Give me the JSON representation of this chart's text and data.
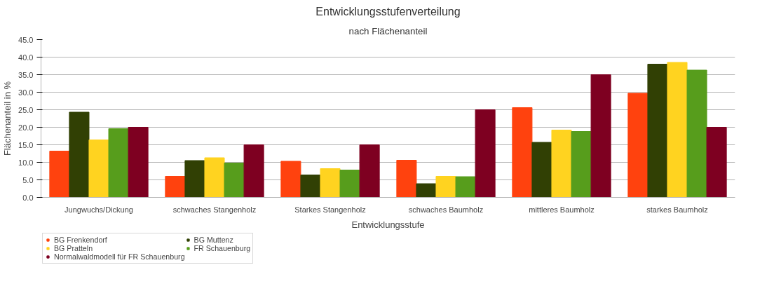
{
  "chart_data": {
    "type": "bar",
    "title": "Entwicklungsstufenverteilung",
    "subtitle": "nach Flächenanteil",
    "xlabel": "Entwicklungsstufe",
    "ylabel": "Flächenanteil in %",
    "categories": [
      "Jungwuchs/Dickung",
      "schwaches Stangenholz",
      "Starkes Stangenholz",
      "schwaches Baumholz",
      "mittleres Baumholz",
      "starkes Baumholz"
    ],
    "series": [
      {
        "name": "BG Frenkendorf",
        "color": "#ff420e",
        "values": [
          13.2,
          6.0,
          10.3,
          10.6,
          25.6,
          29.7
        ]
      },
      {
        "name": "BG Muttenz",
        "color": "#314004",
        "values": [
          24.3,
          10.5,
          6.4,
          3.9,
          15.7,
          38.0
        ]
      },
      {
        "name": "BG Pratteln",
        "color": "#ffd320",
        "values": [
          16.4,
          11.3,
          8.2,
          6.0,
          19.2,
          38.5
        ]
      },
      {
        "name": "FR Schauenburg",
        "color": "#579d1c",
        "values": [
          19.6,
          9.8,
          7.8,
          5.9,
          18.8,
          36.3
        ]
      },
      {
        "name": "Normalwaldmodell für FR Schauenburg",
        "color": "#7e0021",
        "values": [
          20.0,
          15.0,
          15.0,
          25.0,
          35.0,
          20.0
        ]
      }
    ],
    "ylim": [
      0,
      45
    ],
    "yticks": [
      {
        "value": 0,
        "label": "0.0"
      },
      {
        "value": 5,
        "label": "5.0"
      },
      {
        "value": 10,
        "label": "10.0"
      },
      {
        "value": 15,
        "label": "15.0"
      },
      {
        "value": 20,
        "label": "20.0"
      },
      {
        "value": 25,
        "label": "25.0"
      },
      {
        "value": 30,
        "label": "30.0"
      },
      {
        "value": 35,
        "label": "35.0"
      },
      {
        "value": 40,
        "label": "40.0"
      },
      {
        "value": 45,
        "label": "45.0"
      }
    ],
    "grid": "y",
    "legend": "bottom left"
  }
}
